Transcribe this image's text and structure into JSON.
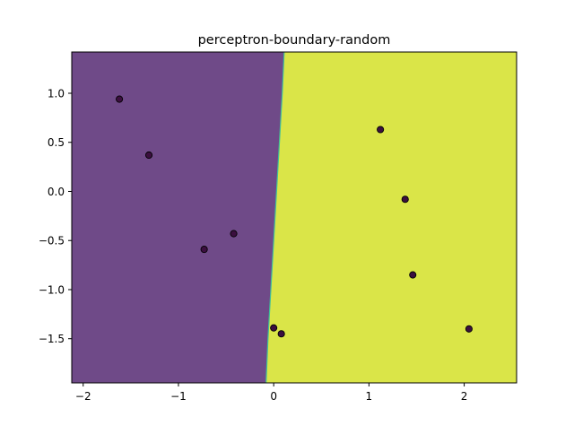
{
  "chart_data": {
    "type": "scatter",
    "title": "perceptron-boundary-random",
    "xlabel": "",
    "ylabel": "",
    "xlim": [
      -2.12,
      2.55
    ],
    "ylim": [
      -1.95,
      1.42
    ],
    "xticks": [
      -2,
      -1,
      0,
      1,
      2
    ],
    "yticks": [
      -1.5,
      -1.0,
      -0.5,
      0.0,
      0.5,
      1.0
    ],
    "xtick_labels": [
      "−2",
      "−1",
      "0",
      "1",
      "2"
    ],
    "ytick_labels": [
      "−1.5",
      "−1.0",
      "−0.5",
      "0.0",
      "0.5",
      "1.0"
    ],
    "regions": {
      "class_0_color": "#6f4a88",
      "class_1_color": "#dae548",
      "boundary_edge_color": "#3fbf9a",
      "boundary": [
        {
          "y": -1.95,
          "x": -0.08
        },
        {
          "y": -1.5,
          "x": -0.06
        },
        {
          "y": -1.0,
          "x": -0.03
        },
        {
          "y": -0.5,
          "x": 0.0
        },
        {
          "y": 0.0,
          "x": 0.03
        },
        {
          "y": 0.5,
          "x": 0.06
        },
        {
          "y": 1.0,
          "x": 0.09
        },
        {
          "y": 1.42,
          "x": 0.11
        }
      ]
    },
    "points": {
      "color": "#3b0f3f",
      "edge_color": "#000000",
      "x": [
        -1.62,
        -1.31,
        -0.73,
        -0.42,
        1.12,
        1.38,
        1.46,
        2.05,
        0.0,
        0.08
      ],
      "y": [
        0.94,
        0.37,
        -0.59,
        -0.43,
        0.63,
        -0.08,
        -0.85,
        -1.4,
        -1.39,
        -1.45
      ]
    },
    "grid": false,
    "legend": "none"
  }
}
